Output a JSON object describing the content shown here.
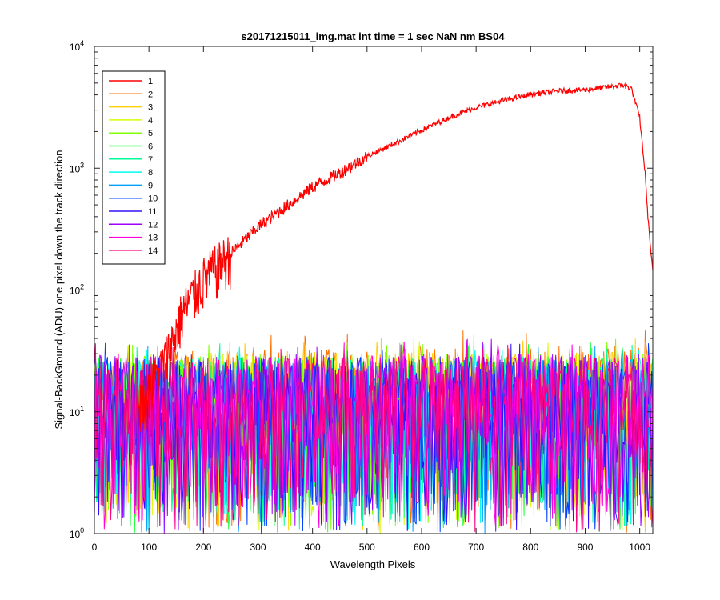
{
  "chart_data": {
    "type": "line",
    "title": "s20171215011_img.mat int time = 1 sec  NaN nm BS04",
    "xlabel": "Wavelength Pixels",
    "ylabel": "Signal-BackGround (ADU) one pixel down the track direction",
    "xlim": [
      0,
      1024
    ],
    "ylim": [
      1,
      10000
    ],
    "yscale": "log",
    "grid": false,
    "legend_position": "top-left",
    "x_ticks": [
      0,
      100,
      200,
      300,
      400,
      500,
      600,
      700,
      800,
      900,
      1000
    ],
    "y_ticks": [
      {
        "value": 1,
        "base": "10",
        "exp": "0"
      },
      {
        "value": 10,
        "base": "10",
        "exp": "1"
      },
      {
        "value": 100,
        "base": "10",
        "exp": "2"
      },
      {
        "value": 1000,
        "base": "10",
        "exp": "3"
      },
      {
        "value": 10000,
        "base": "10",
        "exp": "4"
      }
    ],
    "series": [
      {
        "name": "1",
        "color": "#ff0000",
        "x": [
          80,
          100,
          120,
          140,
          160,
          180,
          200,
          250,
          300,
          350,
          400,
          450,
          500,
          550,
          600,
          650,
          700,
          750,
          800,
          850,
          900,
          950,
          970,
          985,
          1000,
          1010,
          1015,
          1020,
          1024
        ],
        "values": [
          12,
          15,
          22,
          35,
          65,
          90,
          125,
          200,
          330,
          480,
          700,
          920,
          1250,
          1600,
          2050,
          2600,
          3150,
          3600,
          4050,
          4300,
          4400,
          4700,
          4800,
          4500,
          2600,
          900,
          400,
          220,
          140
        ]
      },
      {
        "name": "2",
        "color": "#ff7000",
        "noise": [
          1,
          47
        ]
      },
      {
        "name": "3",
        "color": "#ffd000",
        "noise": [
          1,
          42
        ]
      },
      {
        "name": "4",
        "color": "#d8ff00",
        "noise": [
          1,
          40
        ]
      },
      {
        "name": "5",
        "color": "#80ff00",
        "noise": [
          1,
          40
        ]
      },
      {
        "name": "6",
        "color": "#20ff40",
        "noise": [
          1,
          38
        ]
      },
      {
        "name": "7",
        "color": "#00ff9a",
        "noise": [
          1,
          38
        ]
      },
      {
        "name": "8",
        "color": "#00fff0",
        "noise": [
          1,
          36
        ]
      },
      {
        "name": "9",
        "color": "#00a0ff",
        "noise": [
          1,
          36
        ]
      },
      {
        "name": "10",
        "color": "#0040ff",
        "noise": [
          1,
          38
        ]
      },
      {
        "name": "11",
        "color": "#3010ff",
        "noise": [
          1,
          38
        ]
      },
      {
        "name": "12",
        "color": "#a000ff",
        "noise": [
          1,
          40
        ]
      },
      {
        "name": "13",
        "color": "#ff00e0",
        "noise": [
          1,
          40
        ]
      },
      {
        "name": "14",
        "color": "#ff0080",
        "noise": [
          1,
          38
        ]
      }
    ]
  }
}
